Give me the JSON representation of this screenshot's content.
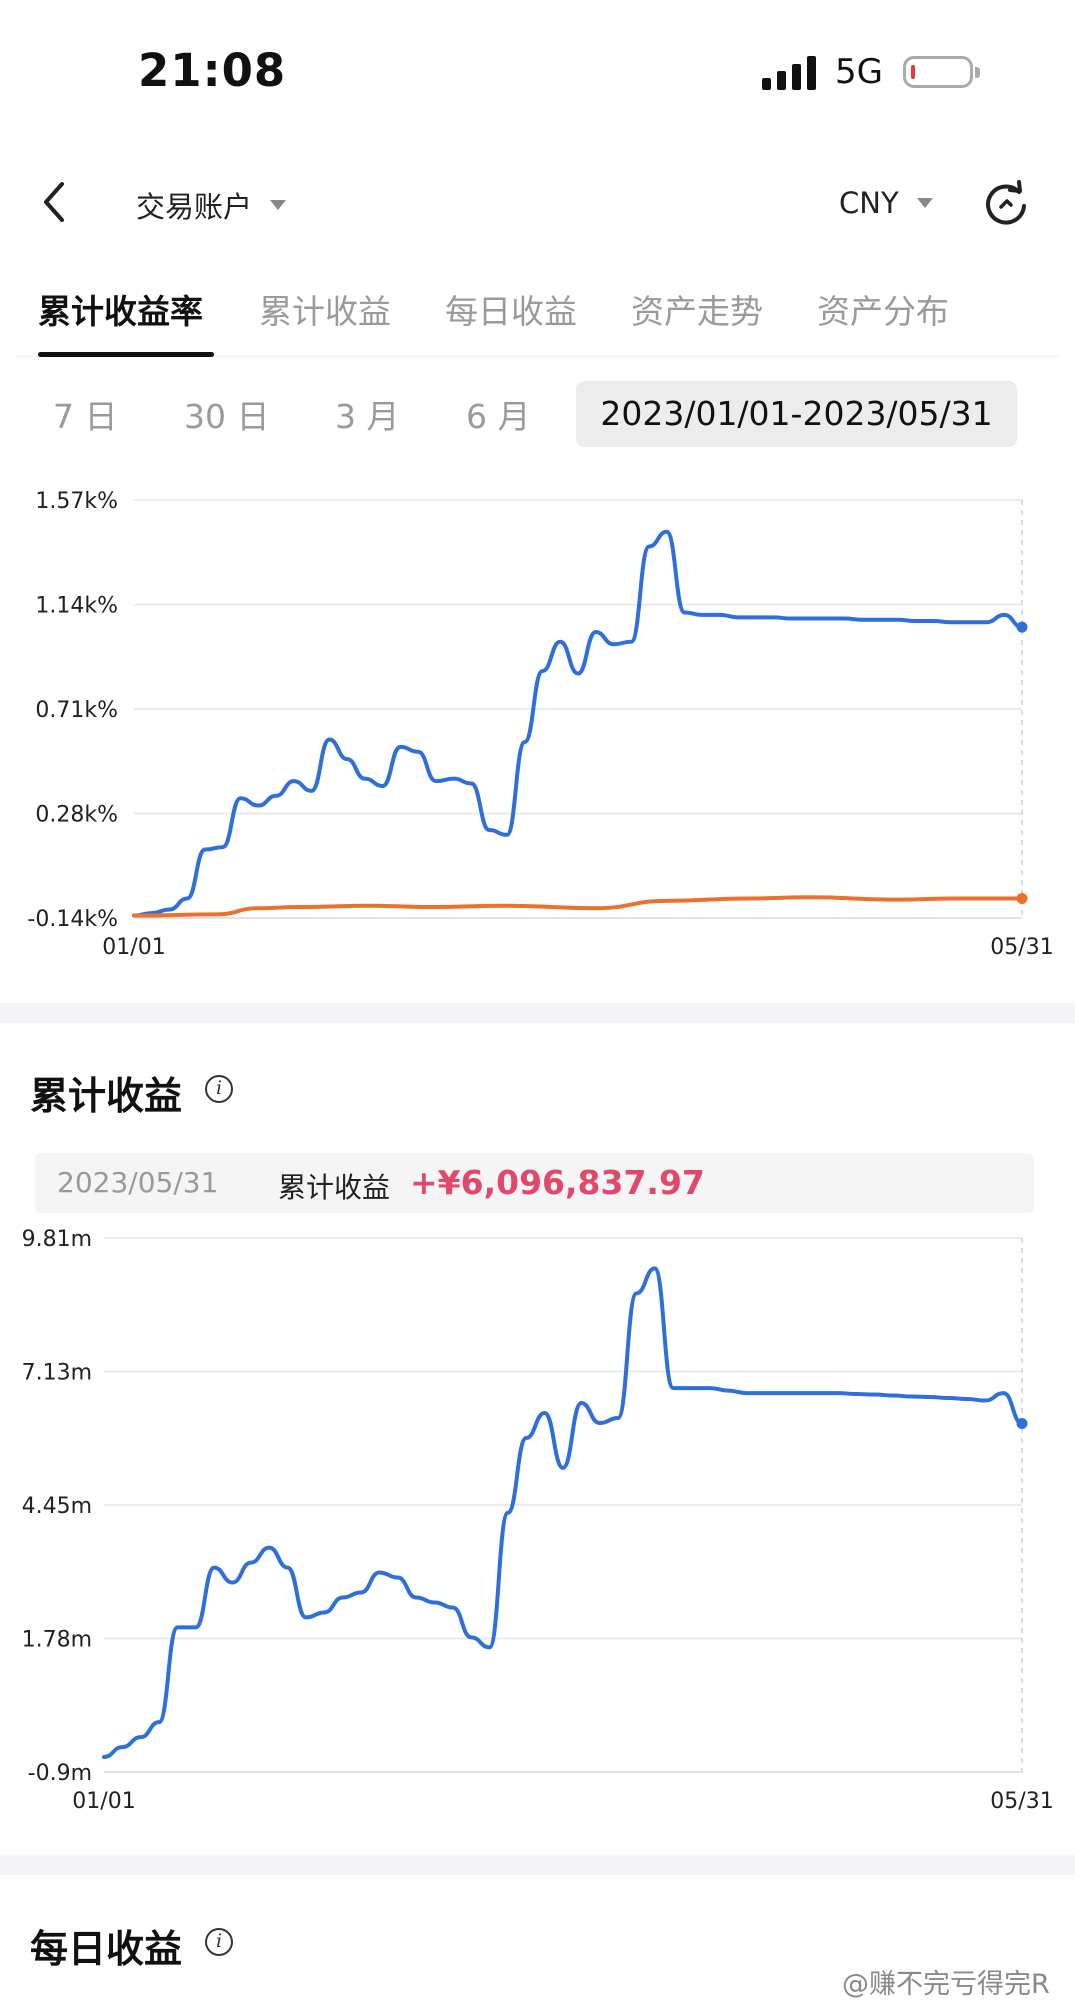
{
  "status_bar": {
    "time": "21:08",
    "network": "5G"
  },
  "header": {
    "account": "交易账户",
    "currency": "CNY"
  },
  "tabs": [
    "累计收益率",
    "累计收益",
    "每日收益",
    "资产走势",
    "资产分布"
  ],
  "ranges": [
    "7 日",
    "30 日",
    "3 月",
    "6 月"
  ],
  "active_range": "2023/01/01-2023/05/31",
  "colors": {
    "blue": "#2f6fdc",
    "orange": "#e8732f",
    "accent_red": "#e0496b"
  },
  "chart_data": [
    {
      "type": "line",
      "y_ticks": [
        "1.57k%",
        "1.14k%",
        "0.71k%",
        "0.28k%",
        "-0.14k%"
      ],
      "x_ticks": [
        "01/01",
        "05/31"
      ],
      "xlim": [
        "2023-01-01",
        "2023-05-31"
      ],
      "ylim": [
        -140,
        1570
      ],
      "series": [
        {
          "color": "#2f6fdc",
          "x": [
            "2023-01-01",
            "2023-01-04",
            "2023-01-07",
            "2023-01-10",
            "2023-01-13",
            "2023-01-16",
            "2023-01-19",
            "2023-01-22",
            "2023-01-25",
            "2023-01-28",
            "2023-01-31",
            "2023-02-03",
            "2023-02-06",
            "2023-02-09",
            "2023-02-12",
            "2023-02-15",
            "2023-02-18",
            "2023-02-21",
            "2023-02-24",
            "2023-02-27",
            "2023-03-02",
            "2023-03-05",
            "2023-03-08",
            "2023-03-11",
            "2023-03-14",
            "2023-03-17",
            "2023-03-20",
            "2023-03-23",
            "2023-03-26",
            "2023-03-29",
            "2023-04-01",
            "2023-04-04",
            "2023-04-07",
            "2023-04-10",
            "2023-04-13",
            "2023-04-16",
            "2023-04-19",
            "2023-04-22",
            "2023-04-25",
            "2023-04-28",
            "2023-05-01",
            "2023-05-04",
            "2023-05-07",
            "2023-05-10",
            "2023-05-13",
            "2023-05-16",
            "2023-05-19",
            "2023-05-22",
            "2023-05-25",
            "2023-05-28",
            "2023-05-31"
          ],
          "values": [
            -130,
            -120,
            -105,
            -60,
            140,
            150,
            350,
            320,
            360,
            420,
            380,
            590,
            510,
            430,
            400,
            560,
            540,
            420,
            430,
            410,
            220,
            200,
            580,
            870,
            990,
            860,
            1030,
            980,
            990,
            1380,
            1440,
            1110,
            1100,
            1100,
            1090,
            1090,
            1090,
            1085,
            1085,
            1085,
            1085,
            1080,
            1080,
            1080,
            1075,
            1075,
            1070,
            1070,
            1070,
            1100,
            1050
          ]
        },
        {
          "color": "#e8732f",
          "x": [
            "2023-01-01",
            "2023-01-15",
            "2023-01-22",
            "2023-01-29",
            "2023-02-10",
            "2023-02-20",
            "2023-03-05",
            "2023-03-20",
            "2023-04-01",
            "2023-04-15",
            "2023-04-25",
            "2023-05-10",
            "2023-05-20",
            "2023-05-31"
          ],
          "values": [
            -130,
            -125,
            -100,
            -95,
            -90,
            -95,
            -90,
            -100,
            -70,
            -60,
            -55,
            -65,
            -60,
            -60
          ]
        }
      ]
    },
    {
      "type": "line",
      "title": "累计收益",
      "summary": {
        "date": "2023/05/31",
        "label": "累计收益",
        "value": "+¥6,096,837.97"
      },
      "y_ticks": [
        "9.81m",
        "7.13m",
        "4.45m",
        "1.78m",
        "-0.9m"
      ],
      "x_ticks": [
        "01/01",
        "05/31"
      ],
      "xlim": [
        "2023-01-01",
        "2023-05-31"
      ],
      "ylim": [
        -0.9,
        9.81
      ],
      "series": [
        {
          "color": "#2f6fdc",
          "x": [
            "2023-01-01",
            "2023-01-04",
            "2023-01-07",
            "2023-01-10",
            "2023-01-13",
            "2023-01-16",
            "2023-01-19",
            "2023-01-22",
            "2023-01-25",
            "2023-01-28",
            "2023-01-31",
            "2023-02-03",
            "2023-02-06",
            "2023-02-09",
            "2023-02-12",
            "2023-02-15",
            "2023-02-18",
            "2023-02-21",
            "2023-02-24",
            "2023-02-27",
            "2023-03-02",
            "2023-03-05",
            "2023-03-08",
            "2023-03-11",
            "2023-03-14",
            "2023-03-17",
            "2023-03-20",
            "2023-03-23",
            "2023-03-26",
            "2023-03-29",
            "2023-04-01",
            "2023-04-04",
            "2023-04-07",
            "2023-04-10",
            "2023-04-13",
            "2023-04-16",
            "2023-04-19",
            "2023-04-22",
            "2023-04-25",
            "2023-04-28",
            "2023-05-01",
            "2023-05-04",
            "2023-05-07",
            "2023-05-10",
            "2023-05-13",
            "2023-05-16",
            "2023-05-19",
            "2023-05-22",
            "2023-05-25",
            "2023-05-28",
            "2023-05-31"
          ],
          "values": [
            -0.6,
            -0.4,
            -0.2,
            0.1,
            2.0,
            2.0,
            3.2,
            2.9,
            3.3,
            3.6,
            3.2,
            2.2,
            2.3,
            2.6,
            2.7,
            3.1,
            3.0,
            2.6,
            2.5,
            2.4,
            1.8,
            1.6,
            4.3,
            5.8,
            6.3,
            5.2,
            6.5,
            6.1,
            6.2,
            8.7,
            9.2,
            6.8,
            6.8,
            6.8,
            6.75,
            6.7,
            6.7,
            6.7,
            6.7,
            6.7,
            6.7,
            6.68,
            6.67,
            6.65,
            6.63,
            6.62,
            6.6,
            6.58,
            6.55,
            6.7,
            6.09
          ]
        }
      ]
    }
  ],
  "section2": {
    "title": "累计收益",
    "info": "i"
  },
  "section3": {
    "title": "每日收益",
    "info": "i"
  },
  "watermark": "@赚不完亏得完R"
}
